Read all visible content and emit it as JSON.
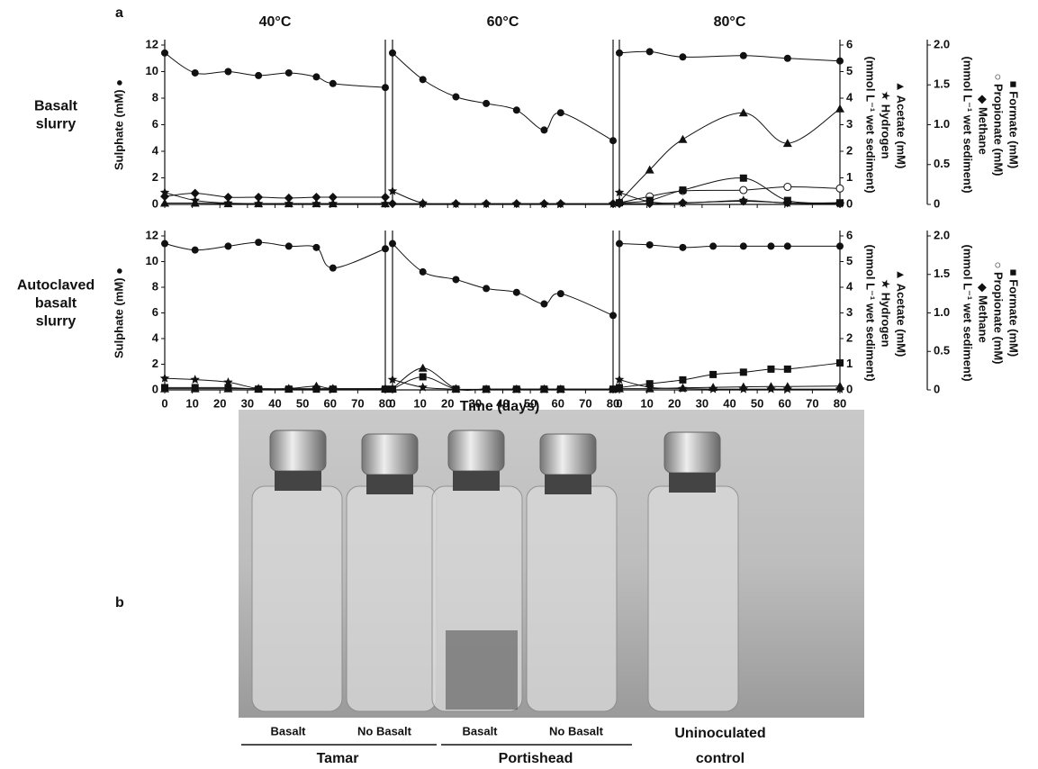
{
  "chart_data": {
    "type": "line",
    "panel_label": "a",
    "color": "#111",
    "columns": [
      "40°C",
      "60°C",
      "80°C"
    ],
    "rows": [
      [
        "Basalt",
        "slurry"
      ],
      [
        "Autoclaved",
        "basalt",
        "slurry"
      ]
    ],
    "xlabel": "Time (days)",
    "x": [
      0,
      11,
      23,
      34,
      45,
      55,
      61,
      80
    ],
    "xlim": [
      0,
      80
    ],
    "xticks": [
      0,
      10,
      20,
      30,
      40,
      50,
      60,
      70,
      80
    ],
    "ylabel": "Sulphate (mM) ●",
    "ylim": [
      0,
      12
    ],
    "yticks": [
      0,
      2,
      4,
      6,
      8,
      10,
      12
    ],
    "y2label": [
      "(mmol L⁻¹ wet sediment)",
      "★ Hydrogen",
      "▲ Acetate (mM)"
    ],
    "y2lim": [
      0,
      6
    ],
    "y2ticks": [
      0,
      1,
      2,
      3,
      4,
      5,
      6
    ],
    "y3label": [
      "(mmol L⁻¹ wet sediment)",
      "◆ Methane",
      "○ Propionate (mM)",
      "■ Formate (mM)"
    ],
    "y3lim": [
      0,
      2
    ],
    "y3ticks": [
      0,
      0.5,
      {
        "value": 1,
        "label": "1.0"
      },
      1.5,
      {
        "value": 2,
        "label": "2.0"
      }
    ],
    "panels": [
      {
        "series": [
          {
            "marker": "circle",
            "axis": "y",
            "values": [
              11.4,
              9.9,
              10.0,
              9.7,
              9.9,
              9.6,
              9.1,
              8.8
            ]
          },
          {
            "marker": "star",
            "axis": "y2",
            "values": [
              0.45,
              0.15,
              0.05,
              0.03,
              0.03,
              0.03,
              0.03,
              0.03
            ]
          },
          {
            "marker": "triangle",
            "axis": "y2",
            "values": [
              0.05,
              0.05,
              0.03,
              0.03,
              0.03,
              0.03,
              0.03,
              0.03
            ]
          },
          {
            "marker": "diamond",
            "axis": "y3",
            "values": [
              0.1,
              0.14,
              0.09,
              0.09,
              0.08,
              0.09,
              0.09,
              0.09
            ]
          }
        ]
      },
      {
        "series": [
          {
            "marker": "circle",
            "axis": "y",
            "values": [
              11.4,
              9.4,
              8.1,
              7.6,
              7.1,
              5.6,
              6.9,
              4.8
            ]
          },
          {
            "marker": "star",
            "axis": "y2",
            "values": [
              0.5,
              0.05,
              0.02,
              0.02,
              0.02,
              0.02,
              0.02,
              0.02
            ]
          },
          {
            "marker": "diamond",
            "axis": "y3",
            "values": [
              0.01,
              0.01,
              0.01,
              0.01,
              0.01,
              0.01,
              0.01,
              0.01
            ]
          }
        ]
      },
      {
        "series": [
          {
            "marker": "circle",
            "axis": "y",
            "values": [
              11.4,
              11.5,
              11.1,
              null,
              11.2,
              null,
              11.0,
              10.8
            ]
          },
          {
            "marker": "triangle",
            "axis": "y2",
            "values": [
              0.1,
              1.3,
              2.45,
              null,
              3.45,
              null,
              2.3,
              3.6
            ]
          },
          {
            "marker": "open-circle",
            "axis": "y3",
            "values": [
              0.02,
              0.1,
              0.17,
              null,
              0.18,
              null,
              0.22,
              0.2
            ]
          },
          {
            "marker": "square",
            "axis": "y3",
            "values": [
              0.02,
              0.05,
              0.18,
              null,
              0.33,
              null,
              0.05,
              0.02
            ]
          },
          {
            "marker": "star",
            "axis": "y2",
            "values": [
              0.45,
              0.1,
              0.05,
              null,
              0.15,
              null,
              0.05,
              0.03
            ]
          },
          {
            "marker": "diamond",
            "axis": "y3",
            "values": [
              0.01,
              0.01,
              0.02,
              null,
              0.04,
              null,
              0.02,
              0.01
            ]
          }
        ]
      },
      {
        "series": [
          {
            "marker": "circle",
            "axis": "y",
            "values": [
              11.4,
              10.9,
              11.2,
              11.5,
              11.2,
              11.1,
              9.5,
              11.0
            ]
          },
          {
            "marker": "star",
            "axis": "y2",
            "values": [
              0.45,
              0.4,
              0.3,
              0.05,
              0.05,
              0.05,
              0.05,
              0.05
            ]
          },
          {
            "marker": "square",
            "axis": "y3",
            "values": [
              0.03,
              0.03,
              0.03,
              0.01,
              0.01,
              0.01,
              0.01,
              0.01
            ]
          },
          {
            "marker": "triangle",
            "axis": "y2",
            "values": [
              0.05,
              0.05,
              0.05,
              0.05,
              0.05,
              0.15,
              0.05,
              0.05
            ]
          }
        ]
      },
      {
        "series": [
          {
            "marker": "circle",
            "axis": "y",
            "values": [
              11.4,
              9.2,
              8.6,
              7.9,
              7.6,
              6.7,
              7.5,
              5.8
            ]
          },
          {
            "marker": "star",
            "axis": "y2",
            "values": [
              0.4,
              0.1,
              0.03,
              0.02,
              0.02,
              0.02,
              0.02,
              0.02
            ]
          },
          {
            "marker": "triangle",
            "axis": "y2",
            "values": [
              0.05,
              0.85,
              0.05,
              0.03,
              0.03,
              0.03,
              0.03,
              0.03
            ]
          },
          {
            "marker": "square",
            "axis": "y3",
            "values": [
              0.01,
              0.17,
              0.01,
              0.01,
              0.01,
              0.01,
              0.01,
              0.01
            ]
          }
        ]
      },
      {
        "series": [
          {
            "marker": "circle",
            "axis": "y",
            "values": [
              11.4,
              11.3,
              11.1,
              11.2,
              11.2,
              11.2,
              11.2,
              11.2
            ]
          },
          {
            "marker": "square",
            "axis": "y3",
            "values": [
              0.03,
              0.08,
              0.13,
              0.2,
              0.23,
              0.27,
              0.27,
              0.35
            ]
          },
          {
            "marker": "star",
            "axis": "y2",
            "values": [
              0.4,
              0.1,
              0.05,
              0.03,
              0.03,
              0.03,
              0.03,
              0.03
            ]
          },
          {
            "marker": "triangle",
            "axis": "y2",
            "values": [
              0.05,
              0.05,
              0.08,
              0.1,
              0.12,
              0.13,
              0.13,
              0.15
            ]
          }
        ]
      }
    ]
  },
  "photo_panel": {
    "label": "b",
    "vials": [
      "Basalt",
      "No Basalt",
      "Basalt",
      "No Basalt"
    ],
    "groups": [
      "Tamar",
      "Portishead"
    ],
    "control": [
      "Uninoculated",
      "control"
    ]
  }
}
